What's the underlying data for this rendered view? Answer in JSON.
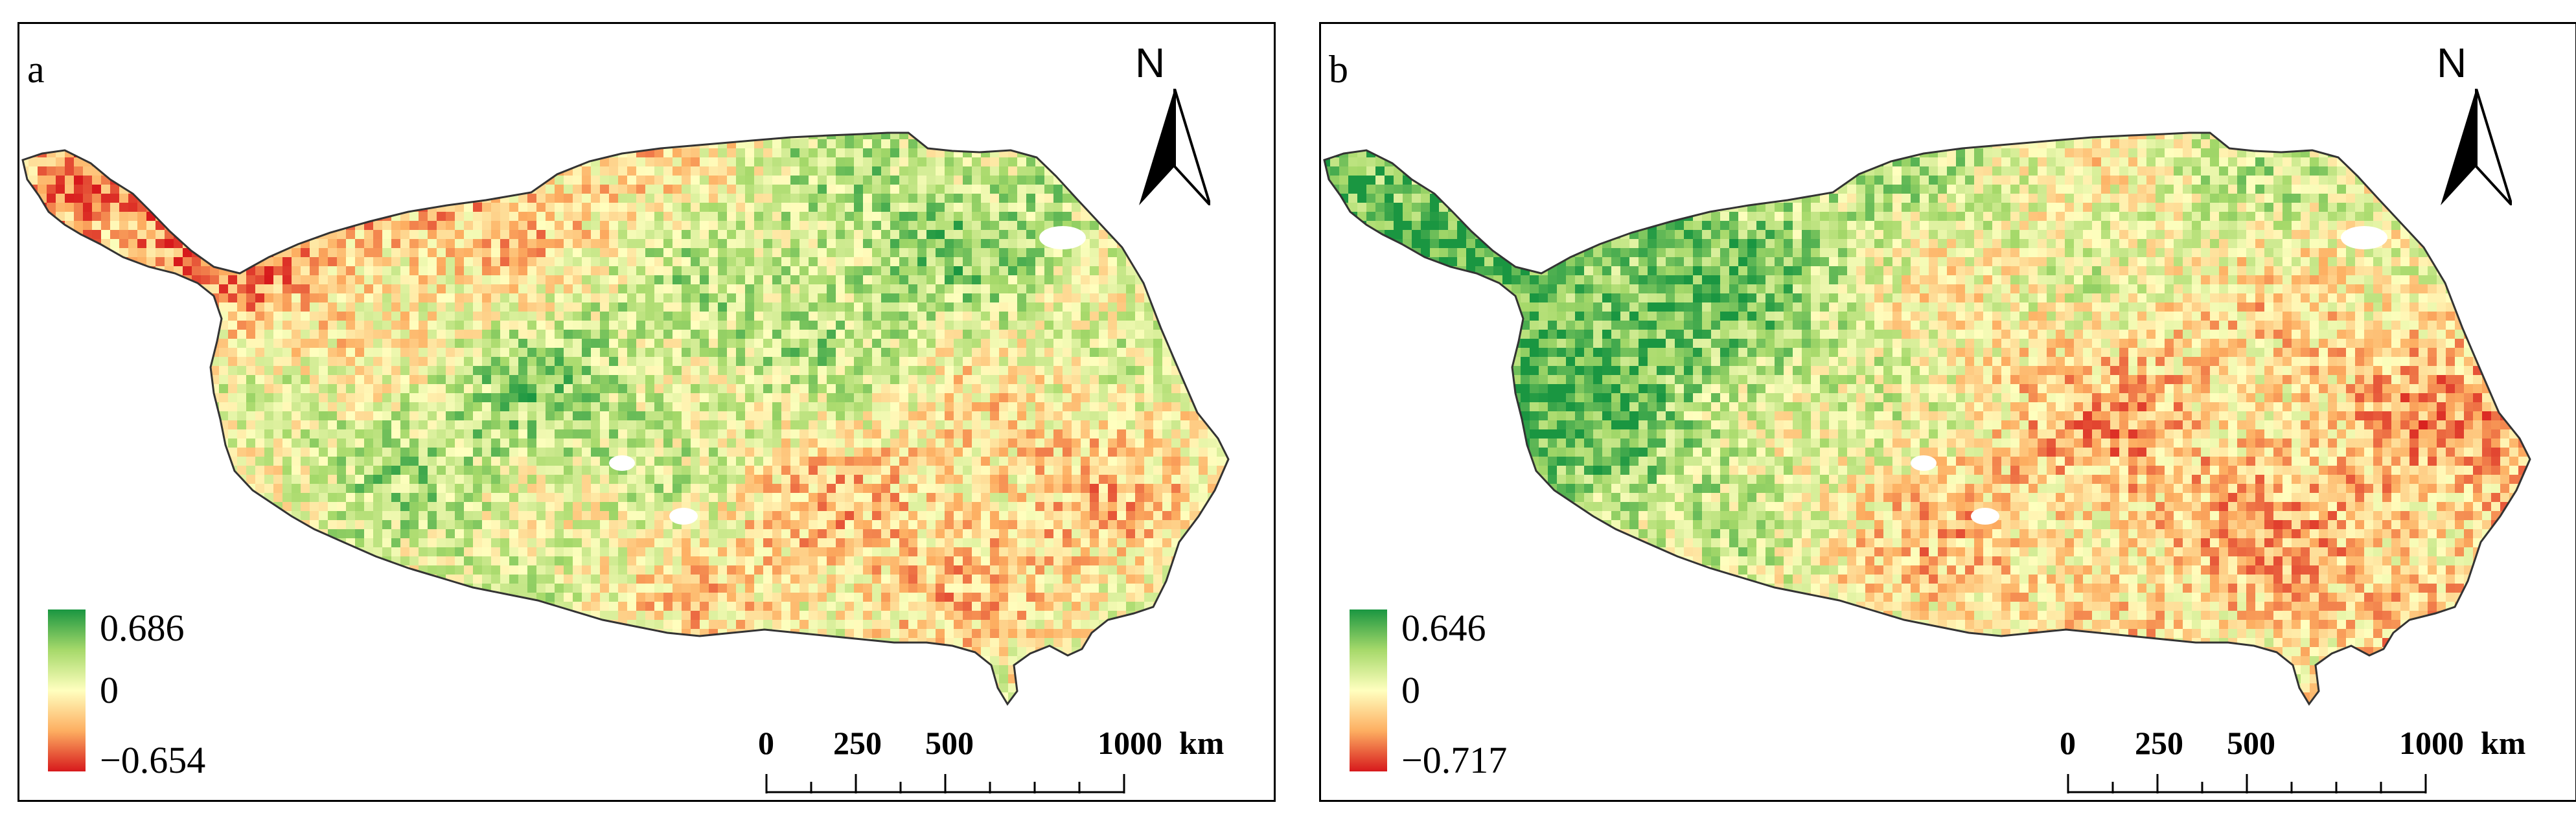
{
  "panels": [
    {
      "id": "a",
      "letter": "a",
      "legend": {
        "max": "0.686",
        "zero": "0",
        "min": "−0.654"
      },
      "pattern": "west-red-north-green-center",
      "north": "N",
      "scale": {
        "ticks": [
          "0",
          "250",
          "500",
          "1000"
        ],
        "unit": "km"
      }
    },
    {
      "id": "b",
      "letter": "b",
      "legend": {
        "max": "0.646",
        "zero": "0",
        "min": "−0.717"
      },
      "pattern": "west-green-east-red",
      "north": "N",
      "scale": {
        "ticks": [
          "0",
          "250",
          "500",
          "1000"
        ],
        "unit": "km"
      }
    }
  ],
  "colors": {
    "high": "#1a9641",
    "mid_high": "#a6d96a",
    "zero": "#ffffbf",
    "mid_low": "#fdae61",
    "low": "#d7191c",
    "outline": "#333333"
  },
  "icons": [
    "north-arrow-icon",
    "scale-bar-icon"
  ]
}
